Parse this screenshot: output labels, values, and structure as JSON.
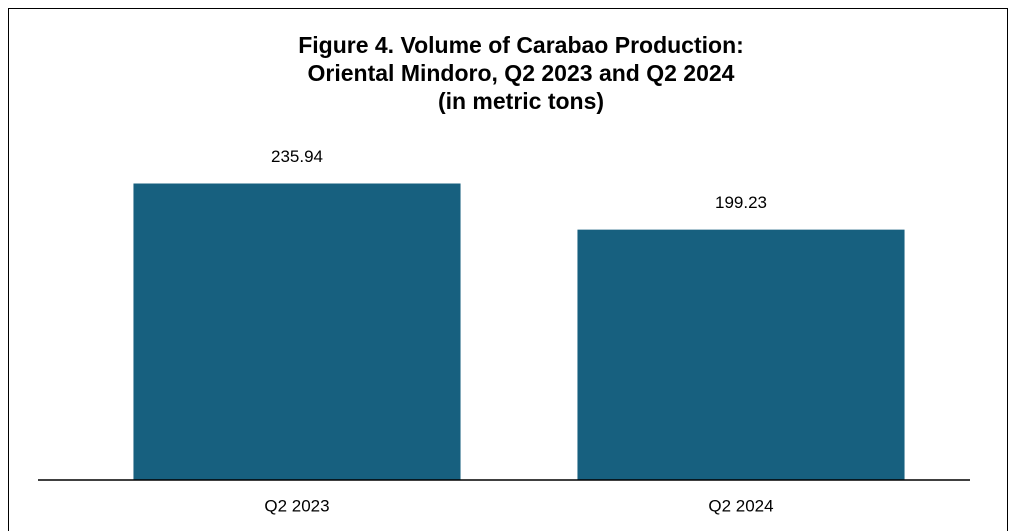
{
  "chart_data": {
    "type": "bar",
    "title": [
      "Figure 4. Volume of Carabao Production:",
      "Oriental Mindoro, Q2 2023 and Q2 2024",
      "(in metric tons)"
    ],
    "categories": [
      "Q2 2023",
      "Q2 2024"
    ],
    "values": [
      235.94,
      199.23
    ],
    "color": "#17607f",
    "ylim": [
      0,
      300
    ]
  }
}
